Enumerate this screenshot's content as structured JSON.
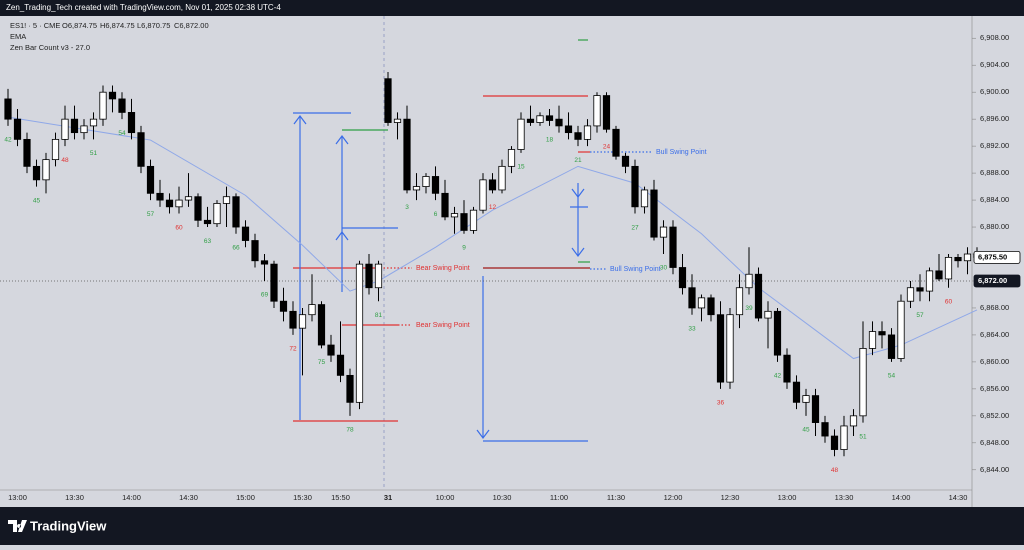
{
  "header": {
    "credit": "Zen_Trading_Tech created with TradingView.com, Nov 01, 2025 02:38 UTC-4",
    "symbol": "ES1! · 5 · CME",
    "ohlc": [
      "O6,874.75",
      "H6,874.75",
      "L6,870.75",
      "C6,872.00"
    ],
    "indicators": [
      "EMA",
      "Zen Bar Count v3 - 27.0"
    ]
  },
  "footer": {
    "brand": "TradingView"
  },
  "chart_data": {
    "type": "candlestick",
    "categories": [
      null,
      "13:00",
      null,
      null,
      null,
      null,
      null,
      "13:30",
      null,
      null,
      null,
      null,
      null,
      "14:00",
      null,
      null,
      null,
      null,
      null,
      "14:30",
      null,
      null,
      null,
      null,
      null,
      "15:00",
      null,
      null,
      null,
      null,
      null,
      "15:30",
      null,
      null,
      null,
      "15:50",
      null,
      null,
      null,
      null,
      "31",
      null,
      null,
      null,
      null,
      null,
      "10:00",
      null,
      null,
      null,
      null,
      null,
      "10:30",
      null,
      null,
      null,
      null,
      null,
      "11:00",
      null,
      null,
      null,
      null,
      null,
      "11:30",
      null,
      null,
      null,
      null,
      null,
      "12:00",
      null,
      null,
      null,
      null,
      null,
      "12:30",
      null,
      null,
      null,
      null,
      null,
      "13:00",
      null,
      null,
      null,
      null,
      null,
      "13:30",
      null,
      null,
      null,
      null,
      null,
      "14:00",
      null,
      null,
      null,
      null,
      null,
      "14:30",
      null,
      null
    ],
    "open": [
      6899,
      6896,
      6893,
      6889,
      6887,
      6890,
      6893,
      6896,
      6894,
      6895,
      6896,
      6900,
      6899,
      6897,
      6894,
      6889,
      6885,
      6884,
      6883,
      6884,
      6884.5,
      6881,
      6880.5,
      6883.5,
      6884.5,
      6880,
      6878,
      6875,
      6874.5,
      6869,
      6867.5,
      6865,
      6867,
      6868.5,
      6862.5,
      6861,
      6858,
      6854,
      6874.5,
      6871,
      6902,
      6895.5,
      6896,
      6885.5,
      6886,
      6887.5,
      6885,
      6881.5,
      6882,
      6879.5,
      6882.5,
      6887,
      6885.5,
      6889,
      6891.5,
      6896,
      6895.5,
      6896.5,
      6896,
      6895,
      6894,
      6893,
      6895,
      6899.5,
      6894.5,
      6890.5,
      6889,
      6883,
      6885.5,
      6878.5,
      6880,
      6874,
      6871,
      6868,
      6869.5,
      6867,
      6857,
      6867,
      6871,
      6873,
      6866.5,
      6867.5,
      6861,
      6857,
      6854,
      6855,
      6851,
      6849,
      6847,
      6850.5,
      6852,
      6862,
      6864.5,
      6864,
      6860.5,
      6869,
      6871,
      6870.5,
      6873.5,
      6872.3,
      6875.5,
      6875,
      6876
    ],
    "high": [
      6900.5,
      6897.5,
      6894,
      6890,
      6891,
      6894,
      6898,
      6898,
      6896,
      6897,
      6901,
      6901,
      6900,
      6899,
      6895,
      6890,
      6887,
      6885,
      6886,
      6888,
      6885,
      6883,
      6884,
      6886,
      6885,
      6881,
      6879,
      6876,
      6875,
      6871,
      6869,
      6868,
      6873,
      6869,
      6864,
      6866,
      6859,
      6875,
      6876,
      6875,
      6903,
      6897,
      6898,
      6888,
      6888,
      6889,
      6887,
      6883,
      6884,
      6883,
      6888,
      6888,
      6890,
      6892,
      6897,
      6898,
      6897,
      6897.5,
      6898,
      6897,
      6895,
      6896,
      6900,
      6900,
      6895,
      6891,
      6890,
      6886,
      6887,
      6881,
      6881,
      6876,
      6873,
      6870,
      6870,
      6869,
      6868,
      6873,
      6877,
      6874,
      6869,
      6868,
      6862,
      6858,
      6856,
      6856,
      6852,
      6850,
      6852,
      6853,
      6866,
      6866,
      6866,
      6865,
      6870,
      6872,
      6873,
      6874,
      6876,
      6876,
      6876,
      6877,
      6877
    ],
    "low": [
      6895,
      6892,
      6888,
      6886,
      6885,
      6889,
      6892,
      6893,
      6893,
      6893,
      6895,
      6897,
      6896,
      6893,
      6888,
      6884,
      6883,
      6882,
      6882,
      6883,
      6880,
      6880,
      6880,
      6880,
      6879,
      6877,
      6874,
      6872,
      6868,
      6866,
      6864,
      6858,
      6866,
      6862,
      6860,
      6857,
      6852,
      6853,
      6870,
      6869,
      6895,
      6893,
      6885,
      6884,
      6885,
      6884,
      6881,
      6879,
      6879,
      6879,
      6882,
      6885,
      6885,
      6888,
      6891,
      6895,
      6895,
      6895,
      6894,
      6893,
      6892,
      6892,
      6894,
      6894,
      6890,
      6888,
      6882,
      6882,
      6878,
      6876,
      6873,
      6870,
      6867,
      6866,
      6866,
      6856,
      6856,
      6865,
      6870,
      6866,
      6862,
      6860,
      6856,
      6853,
      6852,
      6849,
      6848,
      6846,
      6846,
      6849,
      6851,
      6861,
      6862,
      6860,
      6860,
      6868,
      6869,
      6869,
      6872,
      6871,
      6874,
      6873,
      6875
    ],
    "close": [
      6896,
      6893,
      6889,
      6887,
      6890,
      6893,
      6896,
      6894,
      6895,
      6896,
      6900,
      6899,
      6897,
      6894,
      6889,
      6885,
      6884,
      6883,
      6884,
      6884.5,
      6881,
      6880.5,
      6883.5,
      6884.5,
      6880,
      6878,
      6875,
      6874.5,
      6869,
      6867.5,
      6865,
      6867,
      6868.5,
      6862.5,
      6861,
      6858,
      6854,
      6874.5,
      6871,
      6874.5,
      6895.5,
      6896,
      6885.5,
      6886,
      6887.5,
      6885,
      6881.5,
      6882,
      6879.5,
      6882.5,
      6887,
      6885.5,
      6889,
      6891.5,
      6896,
      6895.5,
      6896.5,
      6895.8,
      6895,
      6894,
      6893,
      6895,
      6899.5,
      6894.5,
      6890.5,
      6889,
      6883,
      6885.5,
      6878.5,
      6880,
      6874,
      6871,
      6868,
      6869.5,
      6867,
      6857,
      6867,
      6871,
      6873,
      6866.5,
      6867.5,
      6861,
      6857,
      6854,
      6855,
      6851,
      6849,
      6847,
      6850.5,
      6852,
      6862,
      6864.5,
      6864,
      6860.5,
      6869,
      6871,
      6870.5,
      6873.5,
      6872.3,
      6875.5,
      6875,
      6876,
      6875.5
    ],
    "bull_color": "#ffffff",
    "bear_color": "#000000",
    "ema": {
      "name": "EMA",
      "color": "#8fa8e8",
      "x": [
        0,
        15,
        25,
        31,
        36,
        39,
        45,
        51,
        60,
        66,
        73,
        79,
        85,
        89,
        94,
        102
      ],
      "values": [
        6896.3,
        6892.9,
        6884.7,
        6877.3,
        6870.5,
        6872,
        6877,
        6882.5,
        6889,
        6886.5,
        6879,
        6871,
        6864.7,
        6860.5,
        6862.5,
        6867.7
      ]
    },
    "bar_counts": [
      {
        "color": "#2f9e44",
        "values": [
          42,
          null,
          null,
          45,
          null,
          null,
          null,
          null,
          null,
          51,
          null,
          null,
          54,
          null,
          null,
          57,
          null,
          null,
          null,
          null,
          null,
          63,
          null,
          null,
          66,
          null,
          null,
          69,
          null,
          null,
          null,
          null,
          null,
          75,
          null,
          null,
          78,
          null,
          null,
          81,
          null,
          null,
          3,
          null,
          null,
          6,
          null,
          null,
          9,
          null,
          null,
          null,
          null,
          null,
          15,
          null,
          null,
          18,
          null,
          null,
          21,
          null,
          null,
          null,
          null,
          null,
          27,
          null,
          null,
          30,
          null,
          null,
          33,
          null,
          null,
          null,
          null,
          null,
          39,
          null,
          null,
          42,
          null,
          null,
          45,
          null,
          null,
          null,
          null,
          null,
          51,
          null,
          null,
          54,
          null,
          null,
          57,
          null,
          null,
          null,
          null,
          null,
          null
        ]
      },
      {
        "color": "#e03131",
        "values": [
          null,
          null,
          null,
          null,
          null,
          null,
          48,
          null,
          null,
          null,
          null,
          null,
          null,
          null,
          null,
          null,
          null,
          null,
          60,
          null,
          null,
          null,
          null,
          null,
          null,
          null,
          null,
          null,
          null,
          null,
          72,
          null,
          null,
          null,
          null,
          null,
          null,
          null,
          null,
          null,
          null,
          null,
          null,
          null,
          null,
          null,
          null,
          null,
          null,
          null,
          null,
          12,
          null,
          null,
          null,
          null,
          null,
          null,
          null,
          null,
          null,
          null,
          null,
          24,
          null,
          null,
          null,
          null,
          null,
          null,
          null,
          null,
          null,
          null,
          null,
          36,
          null,
          null,
          null,
          null,
          null,
          null,
          null,
          null,
          null,
          null,
          null,
          48,
          null,
          null,
          null,
          null,
          null,
          null,
          null,
          null,
          null,
          null,
          null,
          60,
          null,
          null,
          null
        ]
      }
    ],
    "annotations": {
      "bear": [
        "Bear Swing Point",
        "Bear Swing Point"
      ],
      "bull": [
        "Bull Swing Point",
        "Bull Swing Point"
      ]
    },
    "ylim": [
      6841,
      6911.3
    ],
    "yticks": [
      {
        "value": 6844,
        "label": "6,844.00"
      },
      {
        "value": 6848,
        "label": "6,848.00"
      },
      {
        "value": 6852,
        "label": "6,852.00"
      },
      {
        "value": 6856,
        "label": "6,856.00"
      },
      {
        "value": 6860,
        "label": "6,860.00"
      },
      {
        "value": 6864,
        "label": "6,864.00"
      },
      {
        "value": 6868,
        "label": "6,868.00"
      },
      {
        "value": 6872,
        "label": "6,872.00"
      },
      {
        "value": 6876,
        "label": "6,876.00"
      },
      {
        "value": 6880,
        "label": "6,880.00"
      },
      {
        "value": 6884,
        "label": "6,884.00"
      },
      {
        "value": 6888,
        "label": "6,888.00"
      },
      {
        "value": 6892,
        "label": "6,892.00"
      },
      {
        "value": 6896,
        "label": "6,896.00"
      },
      {
        "value": 6900,
        "label": "6,900.00"
      },
      {
        "value": 6904,
        "label": "6,904.00"
      },
      {
        "value": 6908,
        "label": "6,908.00"
      }
    ],
    "last_price": {
      "value": 6875.5,
      "label": "6,875.50"
    },
    "crosshair_price": {
      "value": 6872,
      "label": "6,872.00"
    }
  }
}
